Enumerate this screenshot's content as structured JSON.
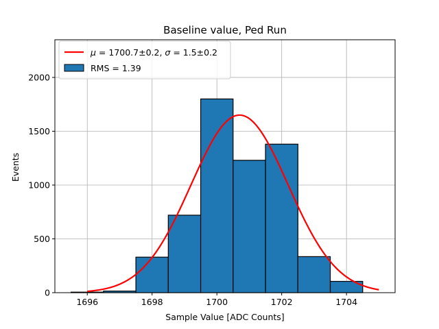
{
  "chart_data": {
    "type": "bar",
    "title": "Baseline value, Ped Run",
    "xlabel": "Sample Value [ADC Counts]",
    "ylabel": "Events",
    "xlim": [
      1695.0,
      1705.5
    ],
    "ylim": [
      0,
      2350
    ],
    "grid": true,
    "legend_position": "top-left",
    "x_ticks": [
      1696,
      1698,
      1700,
      1702,
      1704
    ],
    "y_ticks": [
      0,
      500,
      1000,
      1500,
      2000
    ],
    "histogram": {
      "name": "RMS = 1.39",
      "color": "#1f77b4",
      "edgecolor": "#000000",
      "bins": [
        {
          "start": 1695.5,
          "end": 1696.5,
          "count": 5
        },
        {
          "start": 1696.5,
          "end": 1697.5,
          "count": 15
        },
        {
          "start": 1697.5,
          "end": 1698.5,
          "count": 330
        },
        {
          "start": 1698.5,
          "end": 1699.5,
          "count": 720
        },
        {
          "start": 1699.5,
          "end": 1700.5,
          "count": 1800
        },
        {
          "start": 1700.5,
          "end": 1701.5,
          "count": 1230
        },
        {
          "start": 1701.5,
          "end": 1702.5,
          "count": 1380
        },
        {
          "start": 1702.5,
          "end": 1703.5,
          "count": 335
        },
        {
          "start": 1703.5,
          "end": 1704.5,
          "count": 105
        }
      ]
    },
    "fit": {
      "type": "gaussian",
      "label_mu": "μ",
      "label_rest_1": " = 1700.7±0.2, ",
      "label_sigma": "σ",
      "label_rest_2": " = 1.5±0.2",
      "mu": 1700.7,
      "sigma": 1.5,
      "amplitude": 1650,
      "x_range": [
        1696.0,
        1705.0
      ],
      "color": "#ff0000"
    }
  }
}
